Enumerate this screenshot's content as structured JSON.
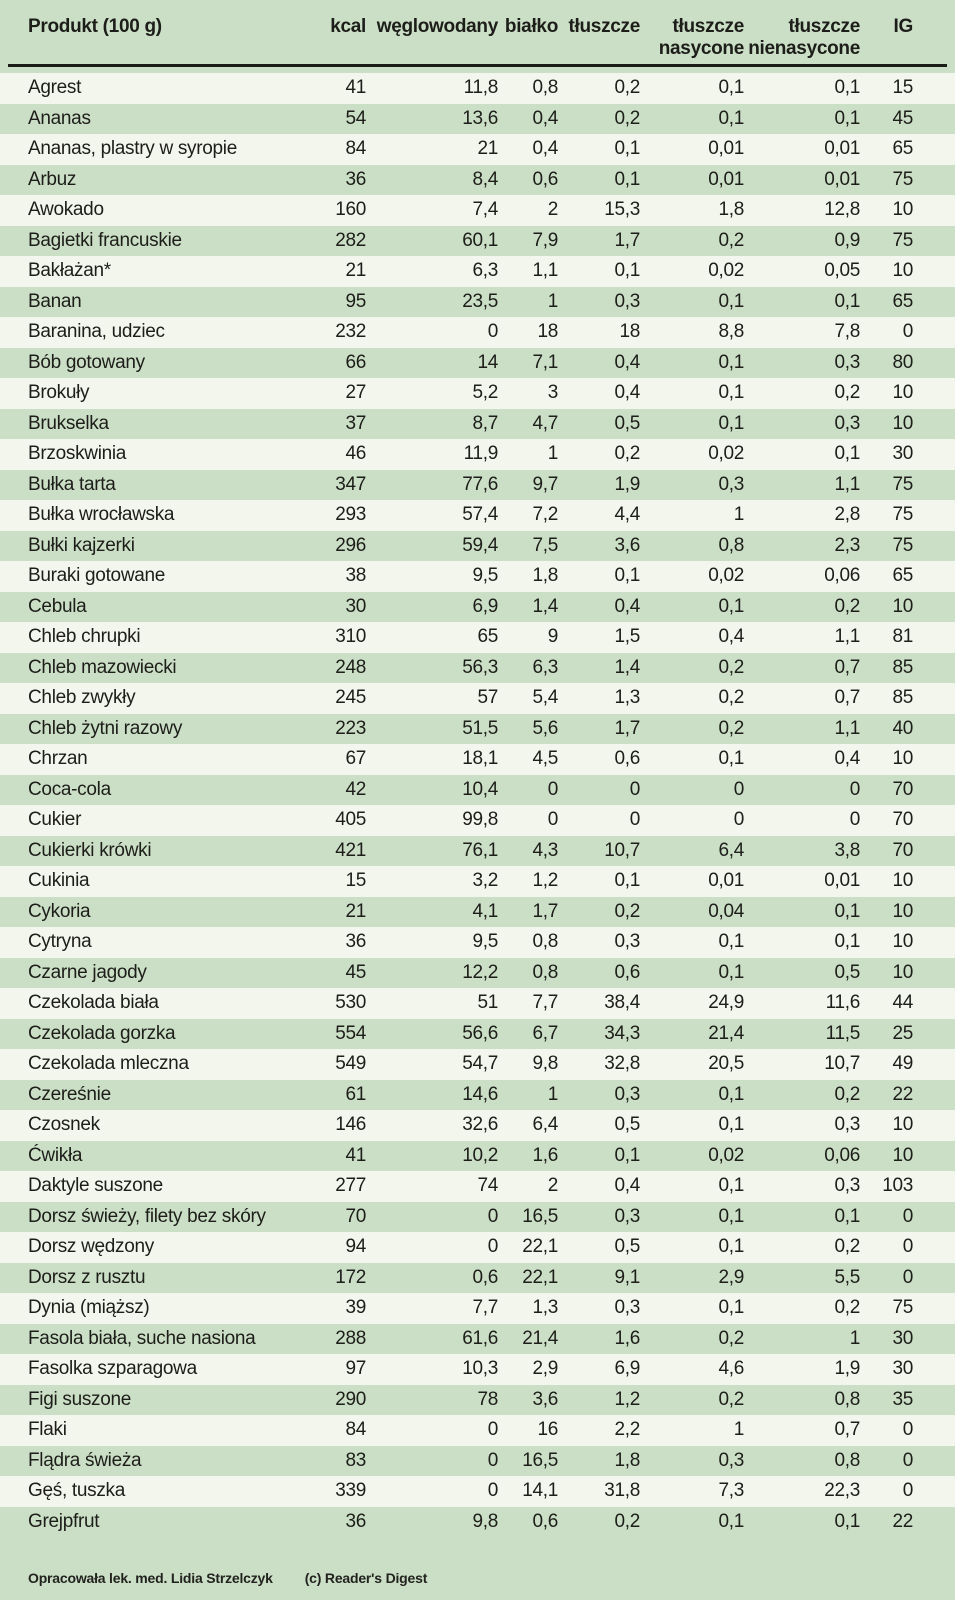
{
  "colors": {
    "page_background": "#cbdfc6",
    "stripe": "#f3f6ec",
    "text": "#1d1d19",
    "header_rule": "#1b1b18"
  },
  "chart_data": {
    "type": "table",
    "title": "Produkt (100 g)",
    "columns": [
      "Produkt (100 g)",
      "kcal",
      "węglowodany",
      "białko",
      "tłuszcze",
      "tłuszcze\nnasycone",
      "tłuszcze\nnienasycone",
      "IG"
    ],
    "rows": [
      [
        "Agrest",
        "41",
        "11,8",
        "0,8",
        "0,2",
        "0,1",
        "0,1",
        "15"
      ],
      [
        "Ananas",
        "54",
        "13,6",
        "0,4",
        "0,2",
        "0,1",
        "0,1",
        "45"
      ],
      [
        "Ananas, plastry w syropie",
        "84",
        "21",
        "0,4",
        "0,1",
        "0,01",
        "0,01",
        "65"
      ],
      [
        "Arbuz",
        "36",
        "8,4",
        "0,6",
        "0,1",
        "0,01",
        "0,01",
        "75"
      ],
      [
        "Awokado",
        "160",
        "7,4",
        "2",
        "15,3",
        "1,8",
        "12,8",
        "10"
      ],
      [
        "Bagietki francuskie",
        "282",
        "60,1",
        "7,9",
        "1,7",
        "0,2",
        "0,9",
        "75"
      ],
      [
        "Bakłażan*",
        "21",
        "6,3",
        "1,1",
        "0,1",
        "0,02",
        "0,05",
        "10"
      ],
      [
        "Banan",
        "95",
        "23,5",
        "1",
        "0,3",
        "0,1",
        "0,1",
        "65"
      ],
      [
        "Baranina, udziec",
        "232",
        "0",
        "18",
        "18",
        "8,8",
        "7,8",
        "0"
      ],
      [
        "Bób gotowany",
        "66",
        "14",
        "7,1",
        "0,4",
        "0,1",
        "0,3",
        "80"
      ],
      [
        "Brokuły",
        "27",
        "5,2",
        "3",
        "0,4",
        "0,1",
        "0,2",
        "10"
      ],
      [
        "Brukselka",
        "37",
        "8,7",
        "4,7",
        "0,5",
        "0,1",
        "0,3",
        "10"
      ],
      [
        "Brzoskwinia",
        "46",
        "11,9",
        "1",
        "0,2",
        "0,02",
        "0,1",
        "30"
      ],
      [
        "Bułka tarta",
        "347",
        "77,6",
        "9,7",
        "1,9",
        "0,3",
        "1,1",
        "75"
      ],
      [
        "Bułka wrocławska",
        "293",
        "57,4",
        "7,2",
        "4,4",
        "1",
        "2,8",
        "75"
      ],
      [
        "Bułki kajzerki",
        "296",
        "59,4",
        "7,5",
        "3,6",
        "0,8",
        "2,3",
        "75"
      ],
      [
        "Buraki gotowane",
        "38",
        "9,5",
        "1,8",
        "0,1",
        "0,02",
        "0,06",
        "65"
      ],
      [
        "Cebula",
        "30",
        "6,9",
        "1,4",
        "0,4",
        "0,1",
        "0,2",
        "10"
      ],
      [
        "Chleb chrupki",
        "310",
        "65",
        "9",
        "1,5",
        "0,4",
        "1,1",
        "81"
      ],
      [
        "Chleb mazowiecki",
        "248",
        "56,3",
        "6,3",
        "1,4",
        "0,2",
        "0,7",
        "85"
      ],
      [
        "Chleb zwykły",
        "245",
        "57",
        "5,4",
        "1,3",
        "0,2",
        "0,7",
        "85"
      ],
      [
        "Chleb żytni razowy",
        "223",
        "51,5",
        "5,6",
        "1,7",
        "0,2",
        "1,1",
        "40"
      ],
      [
        "Chrzan",
        "67",
        "18,1",
        "4,5",
        "0,6",
        "0,1",
        "0,4",
        "10"
      ],
      [
        "Coca-cola",
        "42",
        "10,4",
        "0",
        "0",
        "0",
        "0",
        "70"
      ],
      [
        "Cukier",
        "405",
        "99,8",
        "0",
        "0",
        "0",
        "0",
        "70"
      ],
      [
        "Cukierki krówki",
        "421",
        "76,1",
        "4,3",
        "10,7",
        "6,4",
        "3,8",
        "70"
      ],
      [
        "Cukinia",
        "15",
        "3,2",
        "1,2",
        "0,1",
        "0,01",
        "0,01",
        "10"
      ],
      [
        "Cykoria",
        "21",
        "4,1",
        "1,7",
        "0,2",
        "0,04",
        "0,1",
        "10"
      ],
      [
        "Cytryna",
        "36",
        "9,5",
        "0,8",
        "0,3",
        "0,1",
        "0,1",
        "10"
      ],
      [
        "Czarne jagody",
        "45",
        "12,2",
        "0,8",
        "0,6",
        "0,1",
        "0,5",
        "10"
      ],
      [
        "Czekolada biała",
        "530",
        "51",
        "7,7",
        "38,4",
        "24,9",
        "11,6",
        "44"
      ],
      [
        "Czekolada gorzka",
        "554",
        "56,6",
        "6,7",
        "34,3",
        "21,4",
        "11,5",
        "25"
      ],
      [
        "Czekolada mleczna",
        "549",
        "54,7",
        "9,8",
        "32,8",
        "20,5",
        "10,7",
        "49"
      ],
      [
        "Czereśnie",
        "61",
        "14,6",
        "1",
        "0,3",
        "0,1",
        "0,2",
        "22"
      ],
      [
        "Czosnek",
        "146",
        "32,6",
        "6,4",
        "0,5",
        "0,1",
        "0,3",
        "10"
      ],
      [
        "Ćwikła",
        "41",
        "10,2",
        "1,6",
        "0,1",
        "0,02",
        "0,06",
        "10"
      ],
      [
        "Daktyle suszone",
        "277",
        "74",
        "2",
        "0,4",
        "0,1",
        "0,3",
        "103"
      ],
      [
        "Dorsz świeży, filety bez skóry",
        "70",
        "0",
        "16,5",
        "0,3",
        "0,1",
        "0,1",
        "0"
      ],
      [
        "Dorsz wędzony",
        "94",
        "0",
        "22,1",
        "0,5",
        "0,1",
        "0,2",
        "0"
      ],
      [
        "Dorsz z rusztu",
        "172",
        "0,6",
        "22,1",
        "9,1",
        "2,9",
        "5,5",
        "0"
      ],
      [
        "Dynia (miąższ)",
        "39",
        "7,7",
        "1,3",
        "0,3",
        "0,1",
        "0,2",
        "75"
      ],
      [
        "Fasola biała, suche nasiona",
        "288",
        "61,6",
        "21,4",
        "1,6",
        "0,2",
        "1",
        "30"
      ],
      [
        "Fasolka szparagowa",
        "97",
        "10,3",
        "2,9",
        "6,9",
        "4,6",
        "1,9",
        "30"
      ],
      [
        "Figi suszone",
        "290",
        "78",
        "3,6",
        "1,2",
        "0,2",
        "0,8",
        "35"
      ],
      [
        "Flaki",
        "84",
        "0",
        "16",
        "2,2",
        "1",
        "0,7",
        "0"
      ],
      [
        "Flądra świeża",
        "83",
        "0",
        "16,5",
        "1,8",
        "0,3",
        "0,8",
        "0"
      ],
      [
        "Gęś, tuszka",
        "339",
        "0",
        "14,1",
        "31,8",
        "7,3",
        "22,3",
        "0"
      ],
      [
        "Grejpfrut",
        "36",
        "9,8",
        "0,6",
        "0,2",
        "0,1",
        "0,1",
        "22"
      ]
    ]
  },
  "footer": {
    "credit": "Opracowała lek. med. Lidia Strzelczyk",
    "copyright": "(c) Reader's Digest"
  }
}
